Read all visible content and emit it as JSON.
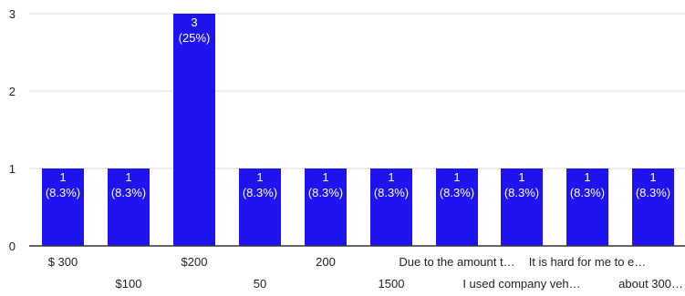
{
  "chart_data": {
    "type": "bar",
    "categories": [
      "$ 300",
      "$100",
      "$200",
      "50",
      "200",
      "1500",
      "Due to the amount t…",
      "I used company veh…",
      "It is hard for me to e…",
      "about 300…"
    ],
    "values": [
      1,
      1,
      3,
      1,
      1,
      1,
      1,
      1,
      1,
      1
    ],
    "data_labels": [
      [
        "1",
        "(8.3%)"
      ],
      [
        "1",
        "(8.3%)"
      ],
      [
        "3",
        "(25%)"
      ],
      [
        "1",
        "(8.3%)"
      ],
      [
        "1",
        "(8.3%)"
      ],
      [
        "1",
        "(8.3%)"
      ],
      [
        "1",
        "(8.3%)"
      ],
      [
        "1",
        "(8.3%)"
      ],
      [
        "1",
        "(8.3%)"
      ],
      [
        "1",
        "(8.3%)"
      ]
    ],
    "y_ticks": [
      "0",
      "1",
      "2",
      "3"
    ],
    "ylim": [
      0,
      3
    ],
    "grid": true,
    "title": "",
    "xlabel": "",
    "ylabel": "",
    "colors": {
      "bar": "#1f14f0",
      "grid": "#d9d9d9",
      "axis": "#333333",
      "text": "#222222",
      "label": "#ffffff"
    }
  }
}
